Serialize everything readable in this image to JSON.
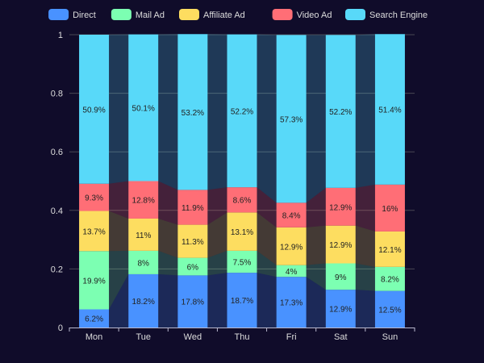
{
  "chart_data": {
    "type": "bar",
    "stacked": true,
    "normalized": true,
    "categories": [
      "Mon",
      "Tue",
      "Wed",
      "Thu",
      "Fri",
      "Sat",
      "Sun"
    ],
    "ylim": [
      0,
      1
    ],
    "y_ticks": [
      "0",
      "0.2",
      "0.4",
      "0.6",
      "0.8",
      "1"
    ],
    "legend_position": "top-center",
    "grid": true,
    "series": [
      {
        "name": "Direct",
        "color": "#4992ff",
        "values": [
          0.062,
          0.182,
          0.178,
          0.187,
          0.173,
          0.129,
          0.125
        ],
        "labels": [
          "6.2%",
          "18.2%",
          "17.8%",
          "18.7%",
          "17.3%",
          "12.9%",
          "12.5%"
        ]
      },
      {
        "name": "Mail Ad",
        "color": "#7cffb2",
        "values": [
          0.199,
          0.08,
          0.06,
          0.075,
          0.04,
          0.09,
          0.082
        ],
        "labels": [
          "19.9%",
          "8%",
          "6%",
          "7.5%",
          "4%",
          "9%",
          "8.2%"
        ]
      },
      {
        "name": "Affiliate Ad",
        "color": "#fddd60",
        "values": [
          0.137,
          0.11,
          0.113,
          0.131,
          0.129,
          0.129,
          0.121
        ],
        "labels": [
          "13.7%",
          "11%",
          "11.3%",
          "13.1%",
          "12.9%",
          "12.9%",
          "12.1%"
        ]
      },
      {
        "name": "Video Ad",
        "color": "#ff6e76",
        "values": [
          0.093,
          0.128,
          0.119,
          0.086,
          0.084,
          0.129,
          0.16
        ],
        "labels": [
          "9.3%",
          "12.8%",
          "11.9%",
          "8.6%",
          "8.4%",
          "12.9%",
          "16%"
        ]
      },
      {
        "name": "Search Engine",
        "color": "#58d9f9",
        "values": [
          0.509,
          0.501,
          0.532,
          0.522,
          0.573,
          0.522,
          0.514
        ],
        "labels": [
          "50.9%",
          "50.1%",
          "53.2%",
          "52.2%",
          "57.3%",
          "52.2%",
          "51.4%"
        ]
      }
    ]
  }
}
